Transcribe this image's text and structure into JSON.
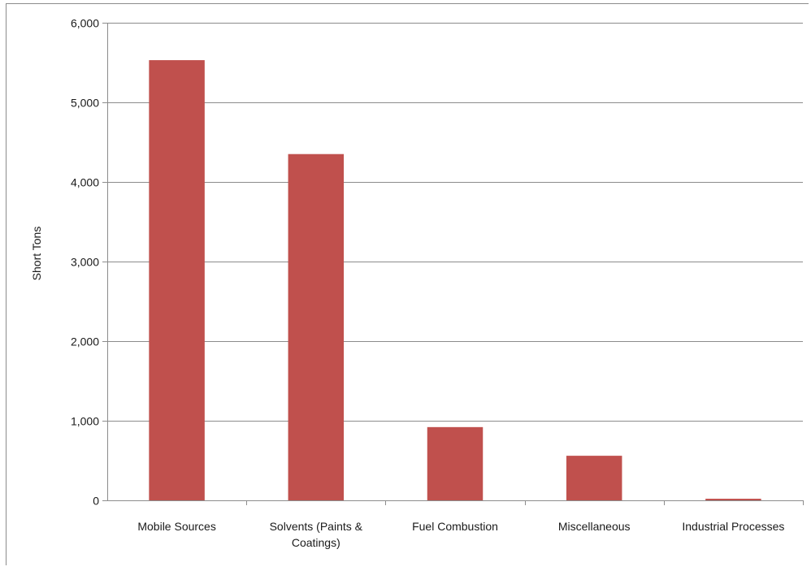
{
  "chart_data": {
    "type": "bar",
    "title": "",
    "xlabel": "",
    "ylabel": "Short Tons",
    "ylim": [
      0,
      6000
    ],
    "yticks": [
      0,
      1000,
      2000,
      3000,
      4000,
      5000,
      6000
    ],
    "ytick_labels": [
      "0",
      "1,000",
      "2,000",
      "3,000",
      "4,000",
      "5,000",
      "6,000"
    ],
    "categories": [
      [
        "Mobile Sources"
      ],
      [
        "Solvents (Paints &",
        "Coatings)"
      ],
      [
        "Fuel Combustion"
      ],
      [
        "Miscellaneous"
      ],
      [
        "Industrial Processes"
      ]
    ],
    "values": [
      5530,
      4350,
      920,
      560,
      20
    ],
    "grid": true,
    "legend": "none",
    "bar_color": "#c0504d",
    "gridline_color": "#8c8c8c"
  }
}
